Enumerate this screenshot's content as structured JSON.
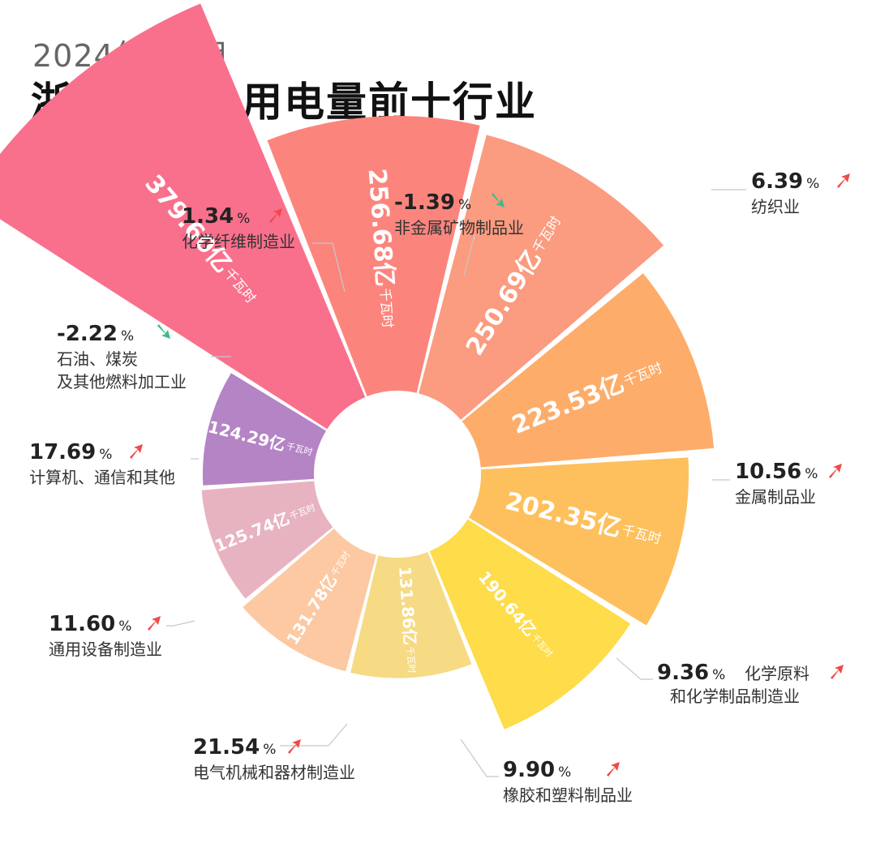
{
  "header": {
    "subtitle": "2024年1-9月",
    "title": "浙江制造业用电量前十行业"
  },
  "colors": {
    "up_arrow": "#f04a4a",
    "down_arrow": "#3dbb8a",
    "leader_line": "#c8c8c8"
  },
  "chart_data": {
    "type": "polar-bar",
    "title": "浙江制造业用电量前十行业",
    "subtitle": "2024年1-9月",
    "unit": "亿千瓦时",
    "value_unit_label": "亿",
    "value_suffix_label": "千瓦时",
    "percent_sign": "%",
    "items": [
      {
        "name": "纺织业",
        "label_lines": [
          "纺织业"
        ],
        "value": 379.6,
        "value_text": "379.60",
        "change": 6.39,
        "change_text": "6.39",
        "direction": "up",
        "color": "#f9708c"
      },
      {
        "name": "金属制品业",
        "label_lines": [
          "金属制品业"
        ],
        "value": 256.68,
        "value_text": "256.68",
        "change": 10.56,
        "change_text": "10.56",
        "direction": "up",
        "color": "#fb857d"
      },
      {
        "name": "化学原料和化学制品制造业",
        "label_lines": [
          "化学原料",
          "和化学制品制造业"
        ],
        "value": 250.69,
        "value_text": "250.69",
        "change": 9.36,
        "change_text": "9.36",
        "direction": "up",
        "color": "#fb9b7f"
      },
      {
        "name": "橡胶和塑料制品业",
        "label_lines": [
          "橡胶和塑料制品业"
        ],
        "value": 223.53,
        "value_text": "223.53",
        "change": 9.9,
        "change_text": "9.90",
        "direction": "up",
        "color": "#fdac6a"
      },
      {
        "name": "电气机械和器材制造业",
        "label_lines": [
          "电气机械和器材制造业"
        ],
        "value": 202.35,
        "value_text": "202.35",
        "change": 21.54,
        "change_text": "21.54",
        "direction": "up",
        "color": "#fec05c"
      },
      {
        "name": "通用设备制造业",
        "label_lines": [
          "通用设备制造业"
        ],
        "value": 190.64,
        "value_text": "190.64",
        "change": 11.6,
        "change_text": "11.60",
        "direction": "up",
        "color": "#fedc4a"
      },
      {
        "name": "计算机、通信和其他",
        "label_lines": [
          "计算机、通信和其他"
        ],
        "value": 131.86,
        "value_text": "131.86",
        "change": 17.69,
        "change_text": "17.69",
        "direction": "up",
        "color": "#f6da84"
      },
      {
        "name": "石油、煤炭及其他燃料加工业",
        "label_lines": [
          "石油、煤炭",
          "及其他燃料加工业"
        ],
        "value": 131.78,
        "value_text": "131.78",
        "change": -2.22,
        "change_text": "-2.22",
        "direction": "down",
        "color": "#fcc9a2"
      },
      {
        "name": "化学纤维制造业",
        "label_lines": [
          "化学纤维制造业"
        ],
        "value": 125.74,
        "value_text": "125.74",
        "change": 1.34,
        "change_text": "1.34",
        "direction": "up",
        "color": "#e8b3c1"
      },
      {
        "name": "非金属矿物制品业",
        "label_lines": [
          "非金属矿物制品业"
        ],
        "value": 124.29,
        "value_text": "124.29",
        "change": -1.39,
        "change_text": "-1.39",
        "direction": "down",
        "color": "#b484c5"
      }
    ]
  }
}
